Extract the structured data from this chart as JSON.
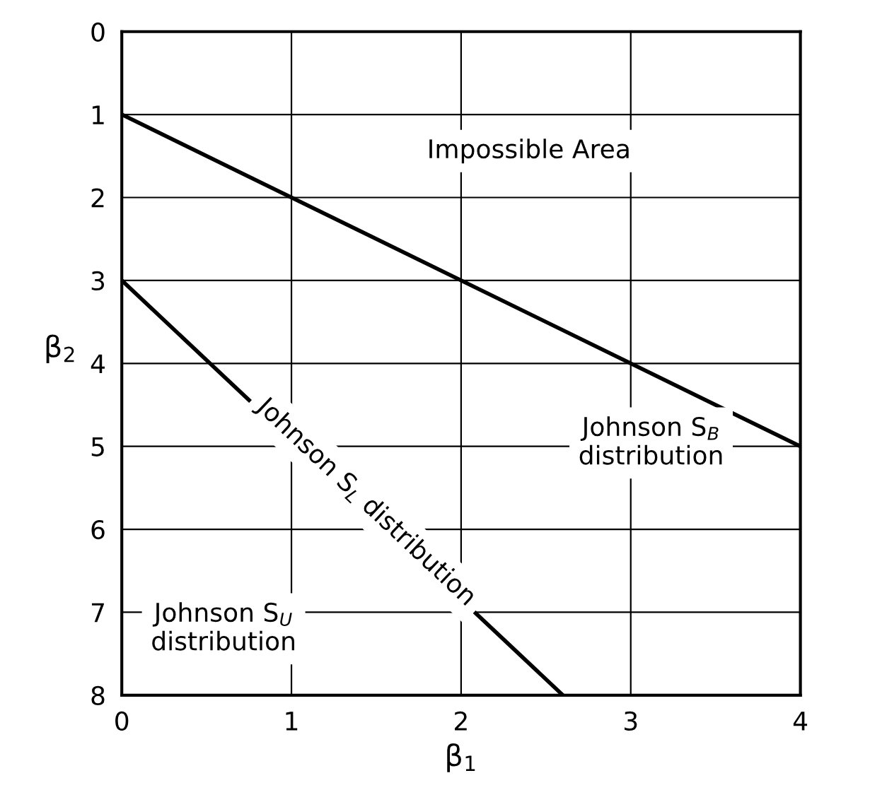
{
  "chart_data": {
    "type": "line",
    "xlabel": "β$_{1}$",
    "ylabel": "β$_{2}$",
    "series": [
      {
        "color": "#000000",
        "x": [
          0,
          4
        ],
        "values": [
          1,
          5
        ]
      },
      {
        "color": "#000000",
        "x": [
          0,
          2.6
        ],
        "values": [
          3,
          8
        ]
      }
    ],
    "xlim": [
      0,
      4
    ],
    "ylim": [
      8,
      0
    ],
    "xticks": [
      0,
      1,
      2,
      3,
      4
    ],
    "yticks": [
      0,
      1,
      2,
      3,
      4,
      5,
      6,
      7,
      8
    ],
    "grid": true,
    "marker": "none",
    "line_style": "solid",
    "annotations": [
      "Impossible Area",
      "Johnson S$_{B}$\ndistribution",
      "Johnson S$_{L}$ distribution",
      "Johnson S$_{U}$\ndistribution"
    ]
  }
}
